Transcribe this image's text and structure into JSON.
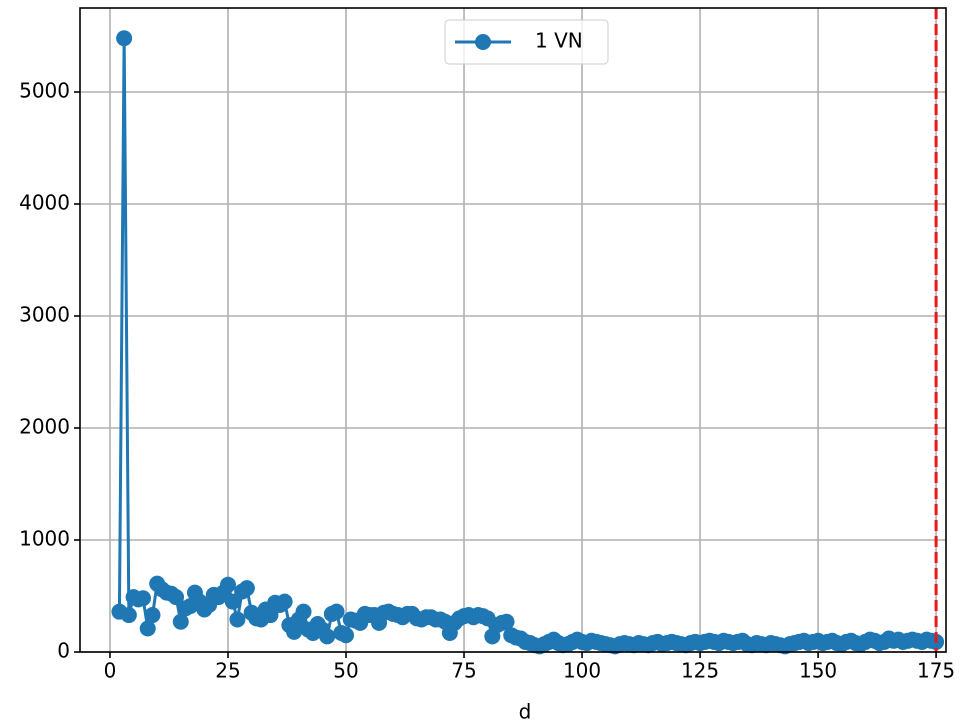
{
  "chart_data": {
    "type": "line",
    "x_label": "d",
    "x": [
      2,
      3,
      4,
      5,
      6,
      7,
      8,
      9,
      10,
      11,
      12,
      13,
      14,
      15,
      16,
      17,
      18,
      19,
      20,
      21,
      22,
      23,
      24,
      25,
      26,
      27,
      28,
      29,
      30,
      31,
      32,
      33,
      34,
      35,
      36,
      37,
      38,
      39,
      40,
      41,
      42,
      43,
      44,
      45,
      46,
      47,
      48,
      49,
      50,
      51,
      52,
      53,
      54,
      55,
      56,
      57,
      58,
      59,
      60,
      61,
      62,
      63,
      64,
      65,
      66,
      67,
      68,
      69,
      70,
      71,
      72,
      73,
      74,
      75,
      76,
      77,
      78,
      79,
      80,
      81,
      82,
      83,
      84,
      85,
      86,
      87,
      88,
      89,
      90,
      91,
      92,
      93,
      94,
      95,
      96,
      97,
      98,
      99,
      100,
      101,
      102,
      103,
      104,
      105,
      106,
      107,
      108,
      109,
      110,
      111,
      112,
      113,
      114,
      115,
      116,
      117,
      118,
      119,
      120,
      121,
      122,
      123,
      124,
      125,
      126,
      127,
      128,
      129,
      130,
      131,
      132,
      133,
      134,
      135,
      136,
      137,
      138,
      139,
      140,
      141,
      142,
      143,
      144,
      145,
      146,
      147,
      148,
      149,
      150,
      151,
      152,
      153,
      154,
      155,
      156,
      157,
      158,
      159,
      160,
      161,
      162,
      163,
      164,
      165,
      166,
      167,
      168,
      169,
      170,
      171,
      172,
      173,
      174,
      175
    ],
    "series": [
      {
        "name": "1 VN",
        "color": "#1f77b4",
        "values": [
          360,
          5480,
          330,
          490,
          470,
          480,
          210,
          330,
          610,
          560,
          530,
          520,
          490,
          270,
          390,
          410,
          530,
          450,
          380,
          420,
          510,
          490,
          530,
          600,
          450,
          290,
          540,
          570,
          350,
          300,
          290,
          380,
          330,
          440,
          420,
          450,
          240,
          180,
          290,
          360,
          200,
          170,
          250,
          200,
          140,
          340,
          360,
          170,
          150,
          290,
          280,
          260,
          340,
          330,
          330,
          260,
          350,
          360,
          340,
          330,
          310,
          340,
          340,
          300,
          290,
          310,
          310,
          290,
          290,
          270,
          170,
          260,
          300,
          320,
          330,
          310,
          330,
          320,
          300,
          140,
          240,
          260,
          270,
          150,
          130,
          120,
          90,
          80,
          60,
          50,
          70,
          90,
          110,
          80,
          60,
          70,
          90,
          110,
          90,
          80,
          100,
          90,
          80,
          70,
          60,
          50,
          70,
          80,
          70,
          60,
          80,
          70,
          60,
          80,
          90,
          70,
          80,
          90,
          80,
          70,
          60,
          80,
          90,
          80,
          90,
          100,
          90,
          80,
          100,
          90,
          80,
          90,
          100,
          70,
          60,
          80,
          70,
          60,
          80,
          70,
          60,
          50,
          70,
          80,
          90,
          100,
          80,
          90,
          100,
          80,
          90,
          100,
          80,
          70,
          90,
          100,
          80,
          70,
          90,
          110,
          100,
          80,
          90,
          120,
          100,
          110,
          90,
          100,
          110,
          100,
          90,
          110,
          100,
          90
        ]
      }
    ],
    "vline": {
      "x": 175,
      "color": "#e41a1c"
    },
    "xlim": [
      -6.35,
      177.1
    ],
    "ylim": [
      0,
      5750
    ],
    "xticks": [
      0,
      25,
      50,
      75,
      100,
      125,
      150,
      175
    ],
    "yticks": [
      0,
      1000,
      2000,
      3000,
      4000,
      5000
    ],
    "grid": true,
    "legend": "upper center"
  }
}
